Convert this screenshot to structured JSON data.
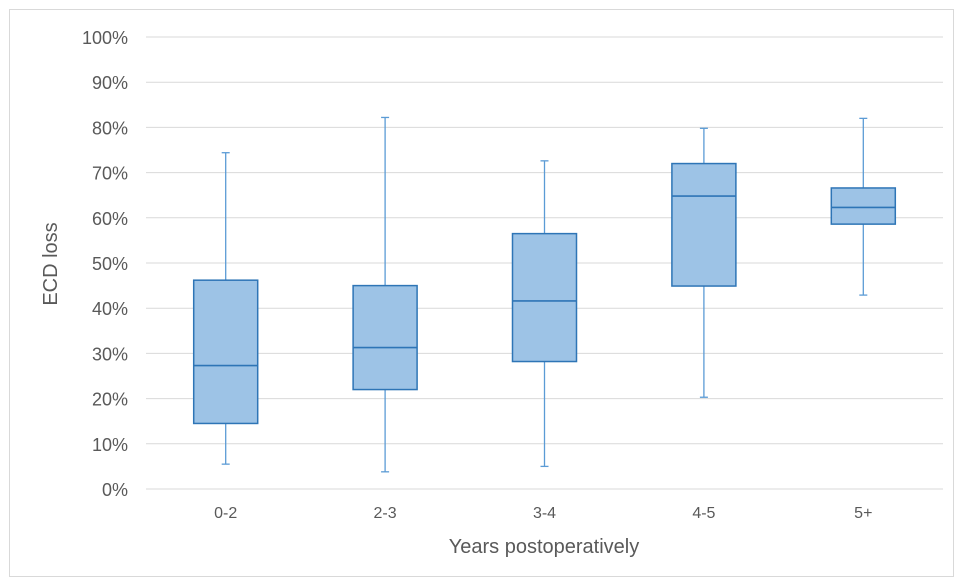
{
  "chart_data": {
    "type": "boxplot",
    "categories": [
      "0-2",
      "2-3",
      "3-4",
      "4-5",
      "5+"
    ],
    "boxes": [
      {
        "category": "0-2",
        "whisker_low": 5.5,
        "q1": 14.5,
        "median": 27.3,
        "q3": 46.2,
        "whisker_high": 74.4
      },
      {
        "category": "2-3",
        "whisker_low": 3.8,
        "q1": 22.0,
        "median": 31.3,
        "q3": 45.0,
        "whisker_high": 82.2
      },
      {
        "category": "3-4",
        "whisker_low": 5.0,
        "q1": 28.2,
        "median": 41.6,
        "q3": 56.5,
        "whisker_high": 72.6
      },
      {
        "category": "4-5",
        "whisker_low": 20.3,
        "q1": 44.9,
        "median": 64.8,
        "q3": 72.0,
        "whisker_high": 79.8
      },
      {
        "category": "5+",
        "whisker_low": 42.9,
        "q1": 58.6,
        "median": 62.3,
        "q3": 66.6,
        "whisker_high": 82.0
      }
    ],
    "xlabel": "Years postoperatively",
    "ylabel": "ECD loss",
    "ylim": [
      0,
      100
    ],
    "ytick_step": 10,
    "ytick_suffix": "%",
    "grid": true,
    "colors": {
      "box_fill": "#9dc3e6",
      "box_stroke": "#2e75b6",
      "whisker": "#5b9bd5",
      "gridline": "#d9d9d9",
      "axis_text": "#595959"
    }
  }
}
